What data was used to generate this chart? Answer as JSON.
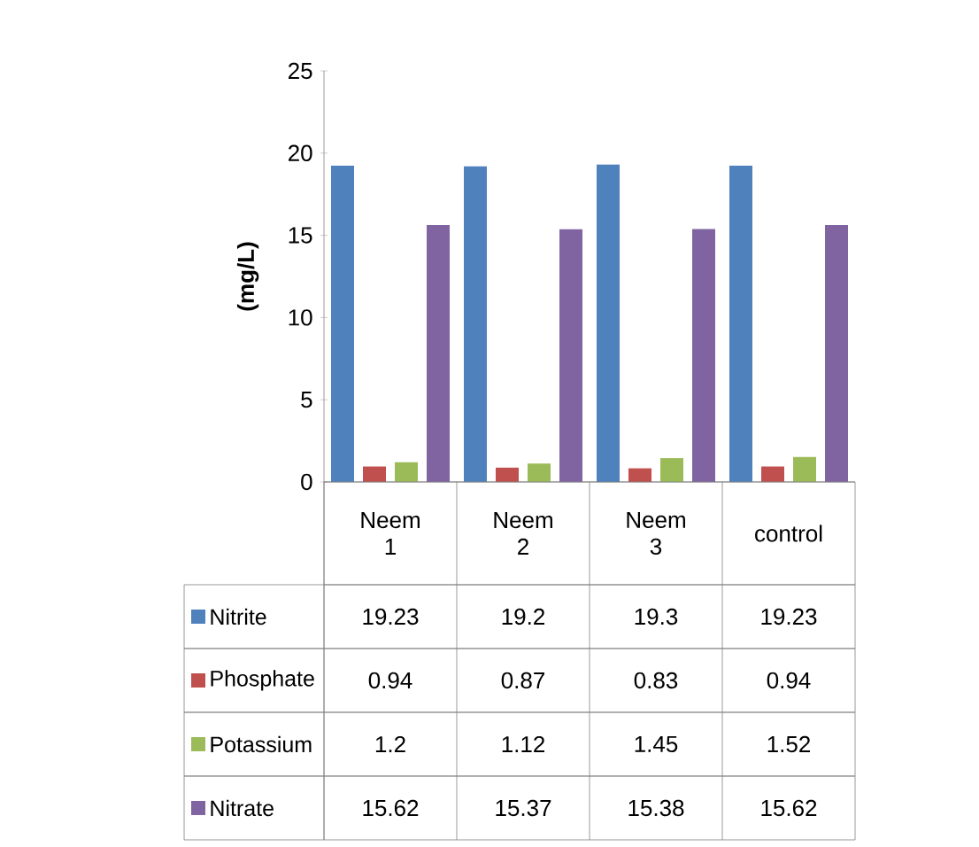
{
  "chart_data": {
    "type": "bar",
    "ylabel": "(mg/L)",
    "categories": [
      "Neem 1",
      "Neem 2",
      "Neem 3",
      "control"
    ],
    "series": [
      {
        "name": "Nitrite",
        "color": "#4f81bd",
        "values": [
          19.23,
          19.2,
          19.3,
          19.23
        ]
      },
      {
        "name": "Phosphate",
        "color": "#c0504d",
        "values": [
          0.94,
          0.87,
          0.83,
          0.94
        ]
      },
      {
        "name": "Potassium",
        "color": "#9bbb59",
        "values": [
          1.2,
          1.12,
          1.45,
          1.52
        ]
      },
      {
        "name": "Nitrate",
        "color": "#8064a2",
        "values": [
          15.62,
          15.37,
          15.38,
          15.62
        ]
      }
    ],
    "ylim": [
      0,
      25
    ],
    "yticks": [
      0,
      5,
      10,
      15,
      20,
      25
    ],
    "grid": false,
    "legend": "bottom",
    "data_labels": true
  }
}
